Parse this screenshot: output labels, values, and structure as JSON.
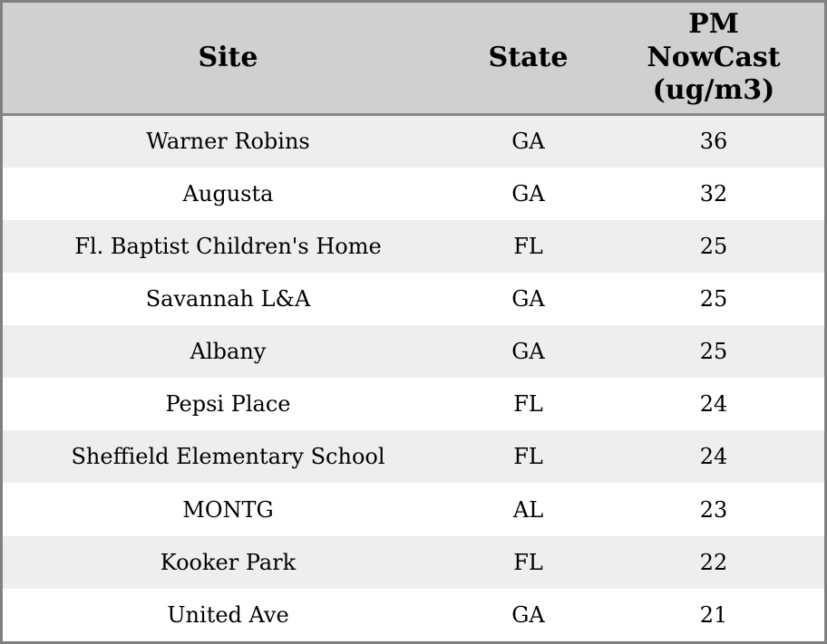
{
  "colors": {
    "header_bg": "#d0d0d0",
    "separator": "#888888",
    "border": "#808080",
    "row_bg": "#ffffff",
    "row_alt_bg": "#eeeeee",
    "text": "#000000"
  },
  "table": {
    "columns": [
      {
        "label": "Site"
      },
      {
        "label": "State"
      },
      {
        "label": "PM NowCast (ug/m3)"
      }
    ],
    "rows": [
      {
        "site": "Warner Robins",
        "state": "GA",
        "pm": "36"
      },
      {
        "site": "Augusta",
        "state": "GA",
        "pm": "32"
      },
      {
        "site": "Fl. Baptist Children's Home",
        "state": "FL",
        "pm": "25"
      },
      {
        "site": "Savannah L&A",
        "state": "GA",
        "pm": "25"
      },
      {
        "site": "Albany",
        "state": "GA",
        "pm": "25"
      },
      {
        "site": "Pepsi Place",
        "state": "FL",
        "pm": "24"
      },
      {
        "site": "Sheffield Elementary School",
        "state": "FL",
        "pm": "24"
      },
      {
        "site": "MONTG",
        "state": "AL",
        "pm": "23"
      },
      {
        "site": "Kooker Park",
        "state": "FL",
        "pm": "22"
      },
      {
        "site": "United Ave",
        "state": "GA",
        "pm": "21"
      }
    ]
  },
  "chart_data": {
    "type": "table",
    "title": "",
    "columns": [
      "Site",
      "State",
      "PM NowCast (ug/m3)"
    ],
    "rows": [
      [
        "Warner Robins",
        "GA",
        36
      ],
      [
        "Augusta",
        "GA",
        32
      ],
      [
        "Fl. Baptist Children's Home",
        "FL",
        25
      ],
      [
        "Savannah L&A",
        "GA",
        25
      ],
      [
        "Albany",
        "GA",
        25
      ],
      [
        "Pepsi Place",
        "FL",
        24
      ],
      [
        "Sheffield Elementary School",
        "FL",
        24
      ],
      [
        "MONTG",
        "AL",
        23
      ],
      [
        "Kooker Park",
        "FL",
        22
      ],
      [
        "United Ave",
        "GA",
        21
      ]
    ],
    "value_unit": "ug/m3",
    "sort": "PM NowCast descending"
  }
}
